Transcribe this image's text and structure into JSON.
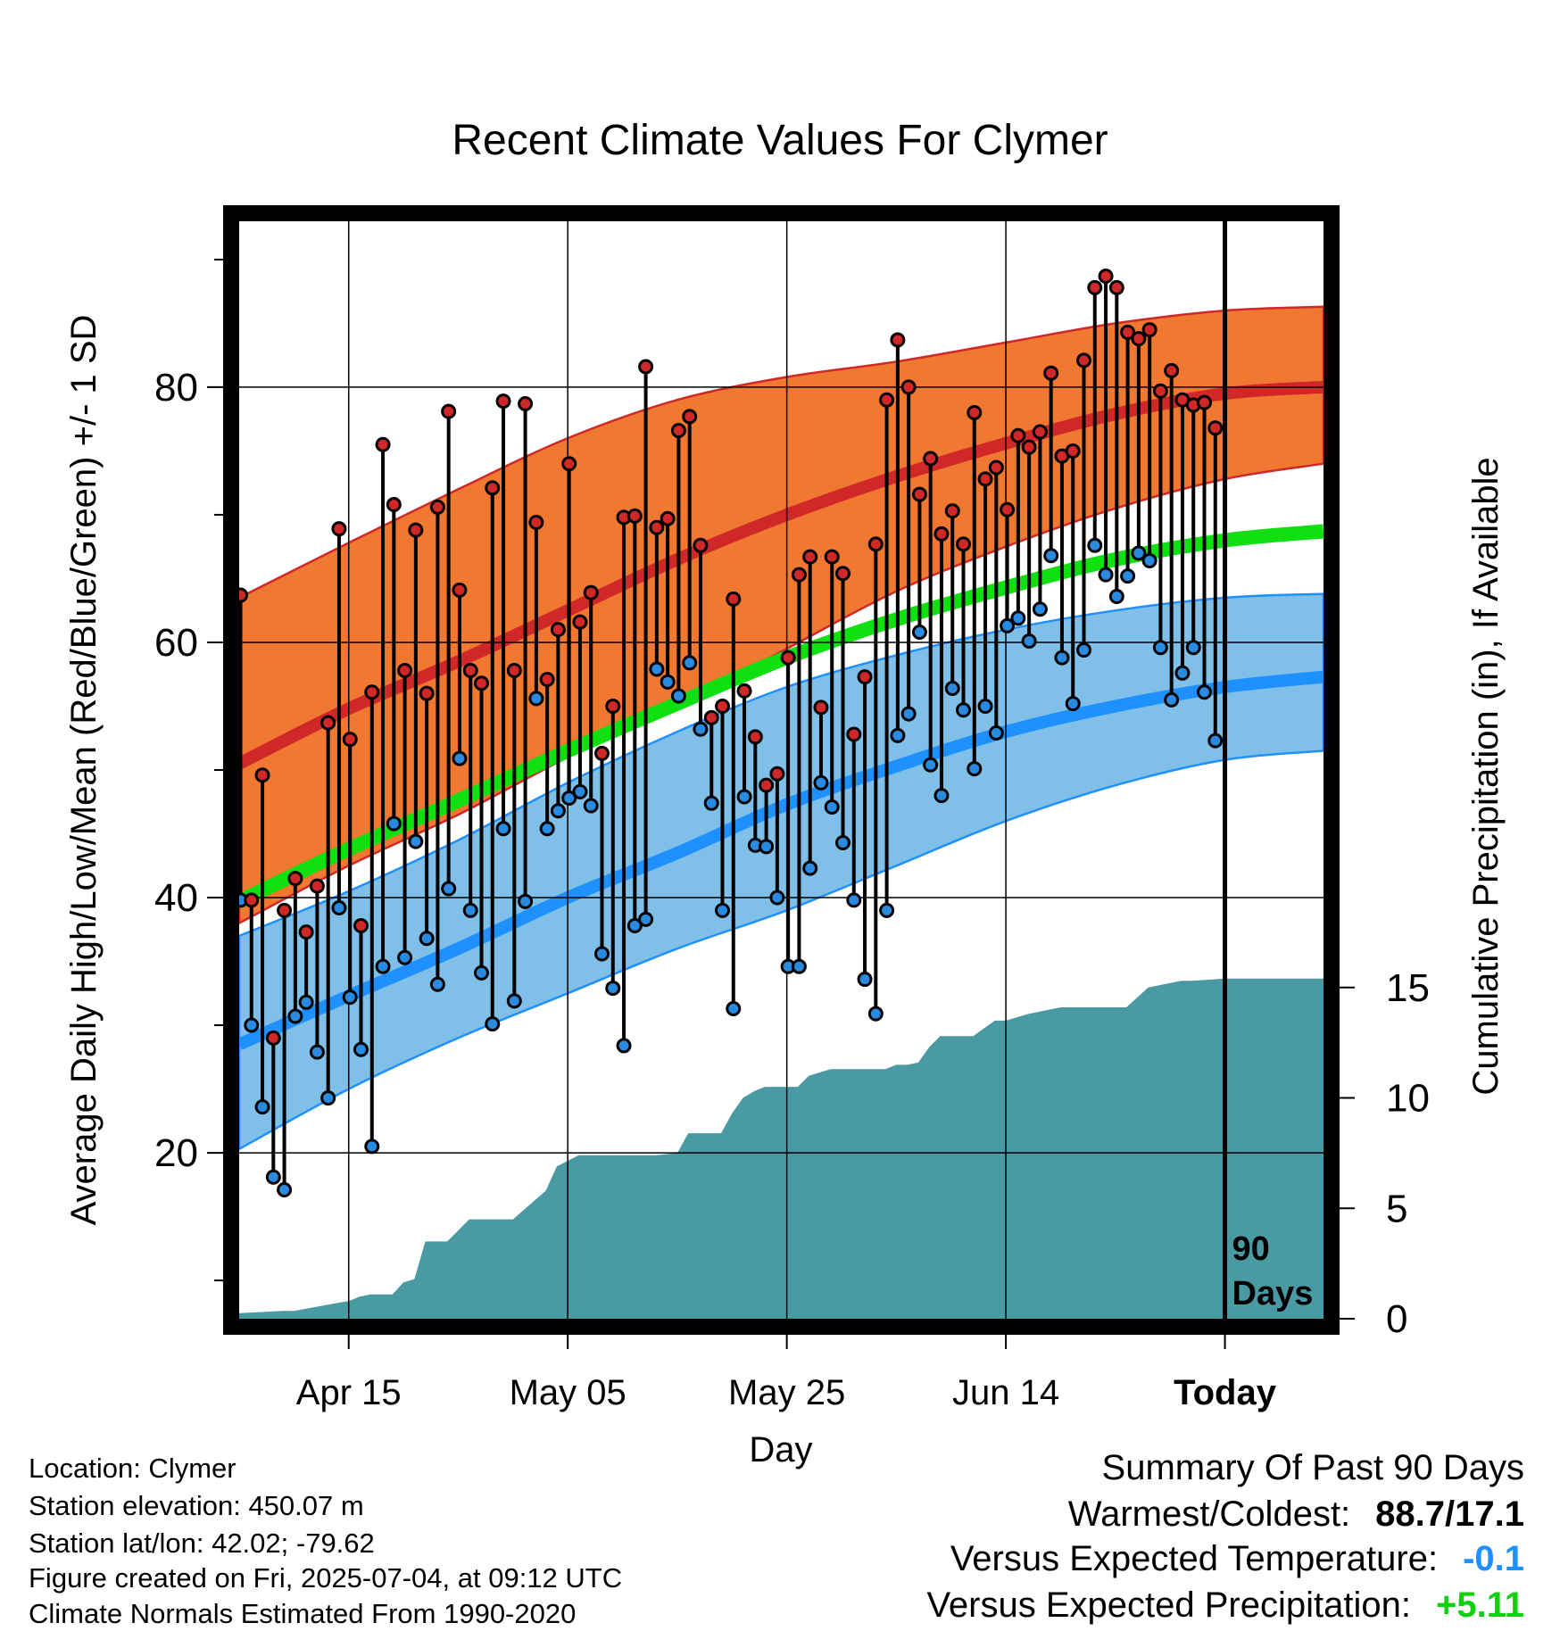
{
  "chart_data": {
    "type": "line",
    "title": "Recent Climate Values For Clymer",
    "xlabel": "Day",
    "ylabel_left": "Average Daily High/Low/Mean (Red/Blue/Green) +/- 1 SD",
    "ylabel_right": "Cumulative Precipitation (in), If Available",
    "xlim": [
      "2025-04-05",
      "2025-07-13"
    ],
    "ylim_left": [
      7,
      93
    ],
    "ylim_right": [
      0,
      15
    ],
    "left_ticks": [
      20,
      40,
      60,
      80
    ],
    "left_minor_ticks": [
      10,
      30,
      50,
      70,
      90
    ],
    "right_ticks": [
      0,
      5,
      10,
      15
    ],
    "x_tick_dates": [
      "2025-04-15",
      "2025-05-05",
      "2025-05-25",
      "2025-06-14",
      "2025-07-04"
    ],
    "x_tick_labels": [
      "Apr 15",
      "May 05",
      "May 25",
      "Jun 14",
      "Today"
    ],
    "today_marker": {
      "date": "2025-07-04",
      "label_line1": "90",
      "label_line2": "Days"
    },
    "normals": {
      "dates": [
        "2025-04-05",
        "2025-04-15",
        "2025-04-25",
        "2025-05-05",
        "2025-05-15",
        "2025-05-25",
        "2025-06-04",
        "2025-06-14",
        "2025-06-24",
        "2025-07-04",
        "2025-07-13"
      ],
      "high_mean": [
        50.5,
        54.8,
        58.5,
        62.5,
        66.5,
        70.0,
        73.0,
        75.6,
        77.9,
        79.5,
        80.0
      ],
      "high_upper": [
        63.5,
        67.8,
        72.0,
        76.0,
        79.0,
        80.8,
        82.0,
        83.5,
        85.0,
        86.0,
        86.3
      ],
      "high_lower": [
        38.0,
        42.5,
        46.5,
        51.0,
        55.0,
        59.5,
        64.0,
        67.5,
        70.5,
        72.8,
        74.0
      ],
      "low_mean": [
        28.5,
        32.3,
        36.0,
        40.0,
        43.5,
        47.3,
        50.3,
        53.0,
        55.0,
        56.5,
        57.3
      ],
      "low_upper": [
        37.0,
        40.5,
        44.5,
        49.0,
        53.0,
        56.5,
        59.0,
        61.0,
        62.5,
        63.5,
        63.8
      ],
      "low_lower": [
        20.3,
        25.0,
        29.0,
        32.5,
        36.0,
        39.0,
        42.5,
        46.0,
        48.8,
        50.8,
        51.5
      ],
      "mean": [
        39.7,
        43.8,
        47.6,
        51.5,
        55.2,
        58.8,
        61.8,
        64.3,
        66.5,
        68.0,
        68.7
      ]
    },
    "daily": {
      "start_date": "2025-04-05",
      "high": [
        63.7,
        39.8,
        49.6,
        29.0,
        39.0,
        41.5,
        37.3,
        40.9,
        53.7,
        68.9,
        52.4,
        37.8,
        56.1,
        75.5,
        70.8,
        57.8,
        68.8,
        56.0,
        70.6,
        78.1,
        64.1,
        57.8,
        56.8,
        72.1,
        78.9,
        57.8,
        78.7,
        69.4,
        57.1,
        61.0,
        74.0,
        61.6,
        63.9,
        51.3,
        55.0,
        69.8,
        69.9,
        81.6,
        69.0,
        69.7,
        76.6,
        77.7,
        67.6,
        54.1,
        55.0,
        63.4,
        56.2,
        52.6,
        48.8,
        49.7,
        58.8,
        65.3,
        66.7,
        54.9,
        66.7,
        65.4,
        52.8,
        57.3,
        67.7,
        79.0,
        83.7,
        80.0,
        71.6,
        74.4,
        68.5,
        70.3,
        67.7,
        78.0,
        72.8,
        73.7,
        70.4,
        76.2,
        75.3,
        76.5,
        81.1,
        74.6,
        75.0,
        82.1,
        87.8,
        88.7,
        87.8,
        84.3,
        83.8,
        84.5,
        79.7,
        81.3,
        79.0,
        78.6,
        78.8,
        76.8
      ],
      "low": [
        39.8,
        30.0,
        23.6,
        18.1,
        17.1,
        30.7,
        31.8,
        27.9,
        24.3,
        39.2,
        32.2,
        28.1,
        20.5,
        34.6,
        45.8,
        35.3,
        44.4,
        36.8,
        33.2,
        40.7,
        50.9,
        39.0,
        34.1,
        30.1,
        45.4,
        31.9,
        39.7,
        55.6,
        45.4,
        46.8,
        47.8,
        48.3,
        47.2,
        35.6,
        32.9,
        28.4,
        37.8,
        38.3,
        57.9,
        56.9,
        55.8,
        58.4,
        53.2,
        47.4,
        39.0,
        31.3,
        47.9,
        44.1,
        44.0,
        40.0,
        34.6,
        34.6,
        42.3,
        49.0,
        47.1,
        44.3,
        39.8,
        33.6,
        30.9,
        39.0,
        52.7,
        54.4,
        60.8,
        50.4,
        48.0,
        56.4,
        54.7,
        50.1,
        55.0,
        52.9,
        61.3,
        61.9,
        60.1,
        62.6,
        66.8,
        58.8,
        55.2,
        59.4,
        67.6,
        65.3,
        63.6,
        65.2,
        67.0,
        66.4,
        59.6,
        55.5,
        57.6,
        59.6,
        56.1,
        52.3
      ]
    },
    "precipitation": {
      "dates": [
        "2025-04-05",
        "2025-04-09",
        "2025-04-10",
        "2025-04-14",
        "2025-04-15",
        "2025-04-16",
        "2025-04-17",
        "2025-04-19",
        "2025-04-20",
        "2025-04-21",
        "2025-04-22",
        "2025-04-24",
        "2025-04-25",
        "2025-04-26",
        "2025-04-30",
        "2025-05-03",
        "2025-05-04",
        "2025-05-06",
        "2025-05-13",
        "2025-05-15",
        "2025-05-16",
        "2025-05-19",
        "2025-05-20",
        "2025-05-21",
        "2025-05-22",
        "2025-05-23",
        "2025-05-26",
        "2025-05-27",
        "2025-05-29",
        "2025-06-03",
        "2025-06-04",
        "2025-06-05",
        "2025-06-06",
        "2025-06-07",
        "2025-06-08",
        "2025-06-11",
        "2025-06-13",
        "2025-06-14",
        "2025-06-16",
        "2025-06-18",
        "2025-06-19",
        "2025-06-25",
        "2025-06-27",
        "2025-06-28",
        "2025-06-29",
        "2025-06-30",
        "2025-07-01",
        "2025-07-04",
        "2025-07-13"
      ],
      "cumulative": [
        0.25,
        0.35,
        0.35,
        0.72,
        0.8,
        1.0,
        1.1,
        1.1,
        1.65,
        1.8,
        3.5,
        3.5,
        4.0,
        4.5,
        4.5,
        5.8,
        6.9,
        7.4,
        7.4,
        7.5,
        8.4,
        8.4,
        9.3,
        10.0,
        10.3,
        10.5,
        10.5,
        11.0,
        11.3,
        11.3,
        11.5,
        11.5,
        11.6,
        12.3,
        12.8,
        12.8,
        13.5,
        13.5,
        13.8,
        14.0,
        14.1,
        14.1,
        15.0,
        15.1,
        15.2,
        15.3,
        15.3,
        15.4,
        15.4
      ]
    }
  },
  "info": {
    "location": "Location: Clymer",
    "elevation": "Station elevation: 450.07 m",
    "latlon": "Station lat/lon: 42.02; -79.62",
    "created": "Figure created on Fri, 2025-07-04, at 09:12 UTC",
    "normals_period": "Climate Normals Estimated From 1990-2020"
  },
  "summary": {
    "heading": "Summary Of Past 90 Days",
    "warm_cold_label": "Warmest/Coldest:",
    "warm_cold_value": "88.7/17.1",
    "temp_label": "Versus Expected Temperature:",
    "temp_value": "-0.1",
    "precip_label": "Versus Expected Precipitation:",
    "precip_value": "+5.11"
  },
  "colors": {
    "high_band": "#f07830",
    "high_line": "#d02828",
    "low_band": "#80c0e8",
    "low_line": "#1e90ff",
    "mean_line": "#10e010",
    "precip_fill": "#4a9aa4",
    "high_dot": "#d02828",
    "low_dot": "#2a8ae0",
    "temp_value": "#1e90ff",
    "precip_value": "#10d010"
  }
}
